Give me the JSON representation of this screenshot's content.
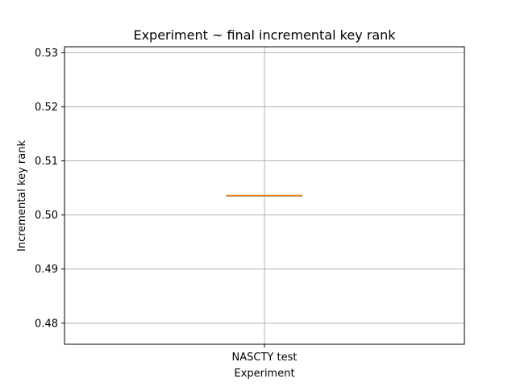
{
  "chart_data": {
    "type": "boxplot",
    "title": "Experiment ~ final incremental key rank",
    "xlabel": "Experiment",
    "ylabel": "Incremental key rank",
    "categories": [
      "NASCTY test"
    ],
    "series": [
      {
        "box": {
          "min": 0.5036,
          "q1": 0.5036,
          "median": 0.5036,
          "q3": 0.5036,
          "max": 0.5036
        }
      }
    ],
    "ylim": [
      0.4761,
      0.5311
    ],
    "yticks": [
      0.48,
      0.49,
      0.5,
      0.51,
      0.52,
      0.53
    ],
    "ytick_labels": [
      "0.48",
      "0.49",
      "0.50",
      "0.51",
      "0.52",
      "0.53"
    ],
    "grid": true,
    "colors": {
      "box": "#1f77b4",
      "median": "#ff7f0e",
      "grid": "#b0b0b0",
      "axes": "#000000"
    }
  }
}
